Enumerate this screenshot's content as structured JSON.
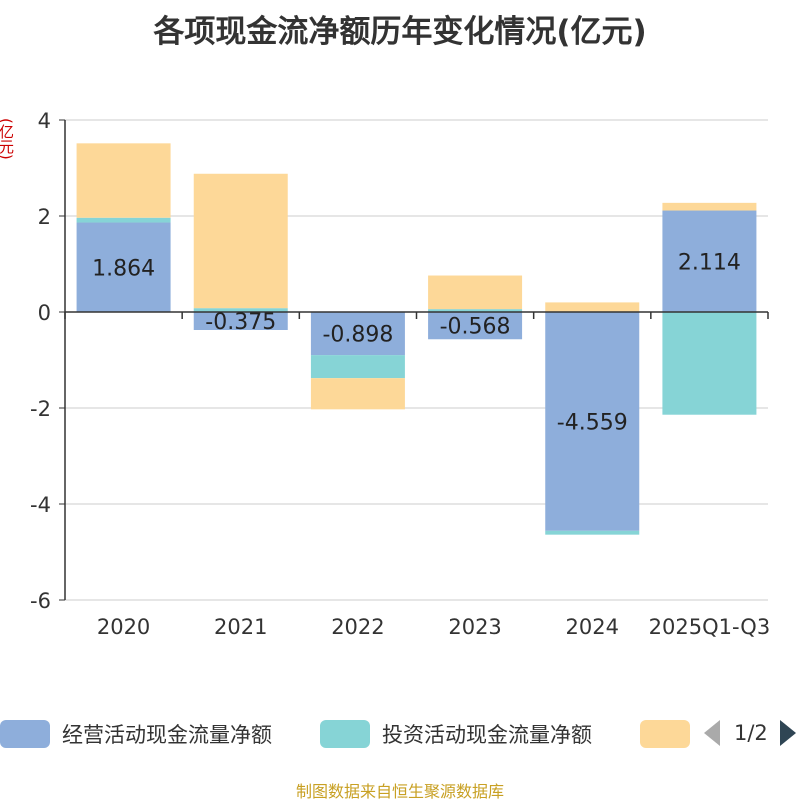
{
  "title": "各项现金流净额历年变化情况(亿元)",
  "unit": "(亿元)",
  "source": "制图数据来自恒生聚源数据库",
  "pager": {
    "current": "1/2"
  },
  "colors": {
    "operating": "#8eaedb",
    "investing": "#86d4d6",
    "financing": "#fdd898",
    "axis": "#333333",
    "grid": "#cccccc"
  },
  "chart_data": {
    "type": "bar",
    "stacked": true,
    "title": "各项现金流净额历年变化情况(亿元)",
    "ylabel": "(亿元)",
    "ylim": [
      -6,
      4
    ],
    "yticks": [
      4,
      2,
      0,
      -2,
      -4,
      -6
    ],
    "categories": [
      "2020",
      "2021",
      "2022",
      "2023",
      "2024",
      "2025Q1-Q3"
    ],
    "series": [
      {
        "name": "经营活动现金流量净额",
        "values": [
          1.864,
          -0.375,
          -0.898,
          -0.568,
          -4.559,
          2.114
        ],
        "show_labels": true
      },
      {
        "name": "投资活动现金流量净额",
        "values": [
          0.1,
          0.08,
          -0.48,
          0.06,
          -0.08,
          -2.14
        ],
        "show_labels": false
      },
      {
        "name": "",
        "values": [
          1.55,
          2.8,
          -0.65,
          0.7,
          0.2,
          0.16
        ],
        "show_labels": false
      }
    ],
    "legend_position": "bottom"
  }
}
